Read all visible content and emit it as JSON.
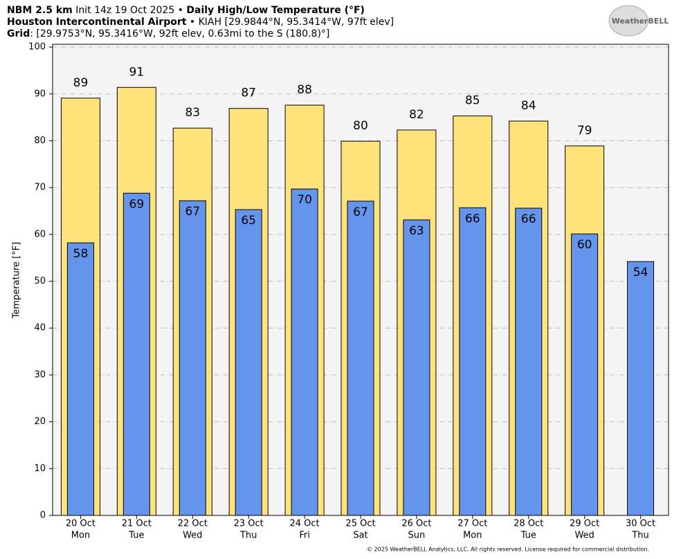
{
  "chart_data": {
    "type": "bar",
    "header": {
      "line1": [
        "NBM 2.5 km",
        "Init 14z 19 Oct 2025 •",
        "Daily High/Low Temperature (°F)"
      ],
      "line2": [
        "Houston Intercontinental Airport",
        "• KIAH [29.9844°N, 95.3414°W, 97ft elev]"
      ],
      "line3": [
        "Grid",
        ": [29.9753°N, 95.3416°W, 92ft elev, 0.63mi to the S (180.8)°]"
      ]
    },
    "logo": "WeatherBELL",
    "y_label": "Temperature [°F]",
    "footer": "© 2025 WeatherBELL Analytics, LLC. All rights reserved. License required for commercial distribution.",
    "categories": [
      "20 Oct",
      "21 Oct",
      "22 Oct",
      "23 Oct",
      "24 Oct",
      "25 Oct",
      "26 Oct",
      "27 Oct",
      "28 Oct",
      "29 Oct",
      "30 Oct"
    ],
    "weekdays": [
      "Mon",
      "Tue",
      "Wed",
      "Thu",
      "Fri",
      "Sat",
      "Sun",
      "Mon",
      "Tue",
      "Wed",
      "Thu"
    ],
    "series": [
      {
        "color": "#ffe37a",
        "values": [
          89.1,
          91.4,
          82.7,
          86.9,
          87.6,
          79.9,
          82.3,
          85.3,
          84.2,
          78.9,
          null
        ],
        "value_labels": [
          "89",
          "91",
          "83",
          "87",
          "88",
          "80",
          "82",
          "85",
          "84",
          "79",
          null
        ]
      },
      {
        "color": "#6495ed",
        "values": [
          58.2,
          68.8,
          67.2,
          65.3,
          69.7,
          67.1,
          63.1,
          65.7,
          65.6,
          60.1,
          54.2
        ],
        "value_labels": [
          "58",
          "69",
          "67",
          "65",
          "70",
          "67",
          "63",
          "66",
          "66",
          "60",
          "54"
        ]
      }
    ],
    "ylim": [
      0,
      100.6
    ],
    "yticks": [
      0,
      10,
      20,
      30,
      40,
      50,
      60,
      70,
      80,
      90,
      100
    ],
    "grid": true,
    "plot_background": "#f4f4f4"
  }
}
